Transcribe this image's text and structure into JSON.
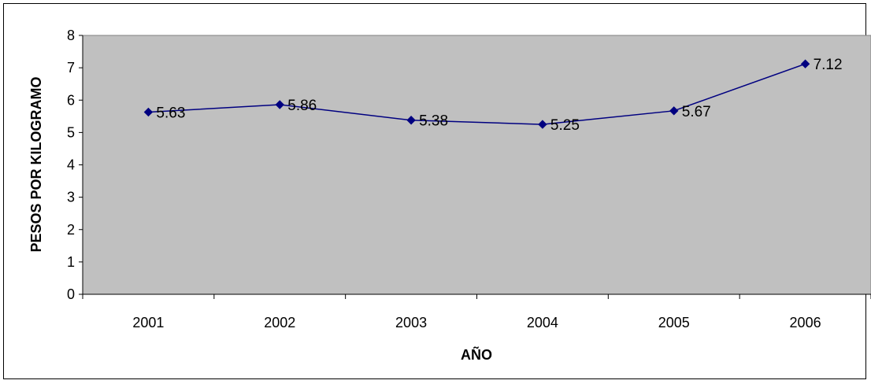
{
  "chart_data": {
    "type": "line",
    "title": "",
    "xlabel": "AÑO",
    "ylabel": "PESOS POR KILOGRAMO",
    "categories": [
      "2001",
      "2002",
      "2003",
      "2004",
      "2005",
      "2006"
    ],
    "series": [
      {
        "values": [
          5.63,
          5.86,
          5.38,
          5.25,
          5.67,
          7.12
        ],
        "color": "#000080",
        "marker": "diamond"
      }
    ],
    "data_labels": [
      "5.63",
      "5.86",
      "5.38",
      "5.25",
      "5.67",
      "7.12"
    ],
    "yticks": [
      "0",
      "1",
      "2",
      "3",
      "4",
      "5",
      "6",
      "7",
      "8"
    ],
    "ylim": [
      0,
      8
    ],
    "grid": false,
    "legend": "none",
    "plot_background": "#c0c0c0"
  }
}
